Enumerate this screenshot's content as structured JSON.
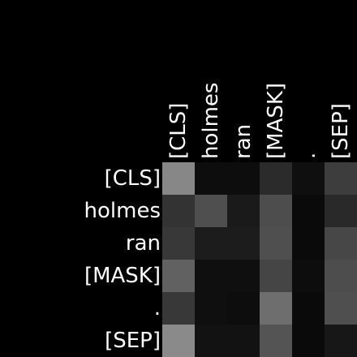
{
  "chart_data": {
    "type": "heatmap",
    "title": "",
    "xlabel": "",
    "ylabel": "",
    "x_labels": [
      "[CLS]",
      "holmes",
      "ran",
      "[MASK]",
      ".",
      "[SEP]"
    ],
    "y_labels": [
      "[CLS]",
      "holmes",
      "ran",
      "[MASK]",
      ".",
      "[SEP]"
    ],
    "colormap": "grayscale",
    "value_range": [
      0,
      1
    ],
    "values": [
      [
        0.53,
        0.05,
        0.05,
        0.17,
        0.06,
        0.24
      ],
      [
        0.2,
        0.31,
        0.1,
        0.3,
        0.04,
        0.16
      ],
      [
        0.22,
        0.11,
        0.11,
        0.31,
        0.04,
        0.28
      ],
      [
        0.38,
        0.06,
        0.06,
        0.27,
        0.05,
        0.3
      ],
      [
        0.22,
        0.06,
        0.05,
        0.43,
        0.04,
        0.31
      ],
      [
        0.54,
        0.07,
        0.07,
        0.33,
        0.04,
        0.09
      ]
    ],
    "background": "#000000",
    "label_color": "#ffffff"
  }
}
